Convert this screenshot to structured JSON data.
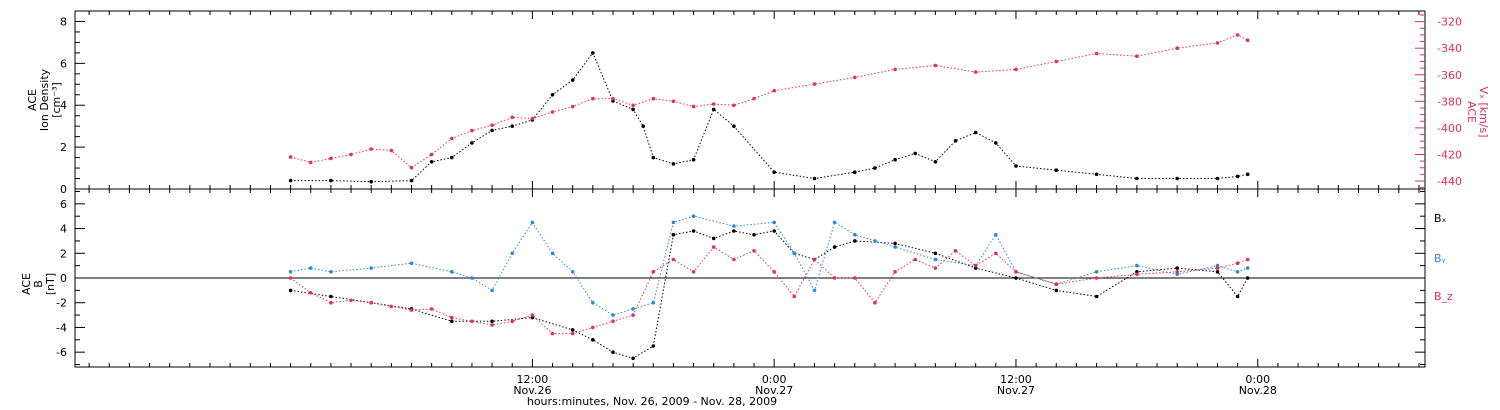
{
  "chart_data": [
    {
      "type": "scatter",
      "panel": "top",
      "left_axis_label": [
        "ACE",
        "Ion Density",
        "[cm⁻³]"
      ],
      "right_axis_label": [
        "ACE",
        "Vₓ [km/s]"
      ],
      "left_ylim": [
        0,
        8.5
      ],
      "left_ticks": [
        "0",
        "2",
        "4",
        "6",
        "8"
      ],
      "left_tick_values": [
        0,
        2,
        4,
        6,
        8
      ],
      "right_ylim": [
        -446,
        -312
      ],
      "right_ticks": [
        "-320",
        "-340",
        "-360",
        "-380",
        "-400",
        "-420",
        "-440"
      ],
      "right_tick_values": [
        -320,
        -340,
        -360,
        -380,
        -400,
        -420,
        -440
      ],
      "colors": {
        "density": "#000000",
        "vx": "#e03060"
      },
      "series": [
        {
          "name": "Ion Density",
          "axis": "left",
          "color": "#000000",
          "x_hours": [
            0,
            2,
            4,
            6,
            7,
            8,
            9,
            10,
            11,
            12,
            13,
            14,
            15,
            16,
            17,
            17.5,
            18,
            19,
            20,
            21,
            22,
            24,
            26,
            28,
            29,
            30,
            31,
            32,
            33,
            34,
            35,
            36,
            38,
            40,
            42,
            44,
            46,
            47,
            47.5
          ],
          "y": [
            0.4,
            0.4,
            0.35,
            0.4,
            1.3,
            1.5,
            2.2,
            2.8,
            3.0,
            3.3,
            4.5,
            5.2,
            6.5,
            4.2,
            3.8,
            3.0,
            1.5,
            1.2,
            1.4,
            3.8,
            3.0,
            0.8,
            0.5,
            0.8,
            1.0,
            1.4,
            1.7,
            1.3,
            2.3,
            2.7,
            2.2,
            1.1,
            0.9,
            0.7,
            0.5,
            0.5,
            0.5,
            0.6,
            0.7
          ]
        },
        {
          "name": "Vx",
          "axis": "right",
          "color": "#e03060",
          "x_hours": [
            0,
            1,
            2,
            3,
            4,
            5,
            6,
            7,
            8,
            9,
            10,
            11,
            12,
            13,
            14,
            15,
            16,
            17,
            18,
            19,
            20,
            21,
            22,
            23,
            24,
            26,
            28,
            30,
            32,
            34,
            36,
            38,
            40,
            42,
            44,
            46,
            47,
            47.5
          ],
          "y": [
            -422,
            -426,
            -423,
            -420,
            -416,
            -417,
            -430,
            -420,
            -408,
            -402,
            -398,
            -392,
            -393,
            -388,
            -384,
            -378,
            -378,
            -383,
            -378,
            -380,
            -384,
            -382,
            -383,
            -378,
            -372,
            -367,
            -362,
            -356,
            -353,
            -358,
            -356,
            -350,
            -344,
            -346,
            -340,
            -336,
            -330,
            -334
          ]
        }
      ]
    },
    {
      "type": "scatter",
      "panel": "bottom",
      "left_axis_label": [
        "ACE",
        "B",
        "[nT]"
      ],
      "ylim": [
        -7.2,
        7.2
      ],
      "left_ticks": [
        "-6",
        "-4",
        "-2",
        "0",
        "2",
        "4",
        "6"
      ],
      "left_tick_values": [
        -6,
        -4,
        -2,
        0,
        2,
        4,
        6
      ],
      "legend": [
        "Bₓ",
        "Bᵧ",
        "B_z"
      ],
      "legend_placement": "right",
      "colors": {
        "bx": "#000000",
        "by": "#2a8ae0",
        "bz": "#e03060"
      },
      "series": [
        {
          "name": "Bx",
          "color": "#000000",
          "x_hours": [
            0,
            2,
            4,
            6,
            8,
            10,
            12,
            14,
            15,
            16,
            17,
            18,
            19,
            20,
            21,
            22,
            23,
            24,
            25,
            26,
            27,
            28,
            30,
            32,
            34,
            36,
            38,
            40,
            42,
            44,
            46,
            47,
            47.5
          ],
          "y": [
            -1.0,
            -1.5,
            -2.0,
            -2.5,
            -3.5,
            -3.5,
            -3.2,
            -4.2,
            -5.0,
            -6.0,
            -6.5,
            -5.5,
            3.5,
            3.8,
            3.2,
            3.8,
            3.5,
            3.8,
            2.0,
            1.5,
            2.5,
            3.0,
            2.8,
            2.0,
            0.8,
            0.0,
            -1.0,
            -1.5,
            0.5,
            0.8,
            0.5,
            -1.5,
            0.0
          ]
        },
        {
          "name": "By",
          "color": "#2a8ae0",
          "x_hours": [
            0,
            1,
            2,
            4,
            6,
            8,
            9,
            10,
            11,
            12,
            13,
            14,
            15,
            16,
            17,
            18,
            19,
            20,
            22,
            24,
            25,
            26,
            27,
            28,
            29,
            30,
            32,
            34,
            35,
            36,
            38,
            40,
            42,
            44,
            46,
            47,
            47.5
          ],
          "y": [
            0.5,
            0.8,
            0.5,
            0.8,
            1.2,
            0.5,
            0.0,
            -1.0,
            2.0,
            4.5,
            2.0,
            0.5,
            -2.0,
            -3.0,
            -2.5,
            -2.0,
            4.5,
            5.0,
            4.2,
            4.5,
            2.0,
            -1.0,
            4.5,
            3.5,
            3.0,
            2.5,
            1.5,
            1.0,
            3.5,
            0.5,
            -0.5,
            0.5,
            1.0,
            0.3,
            1.0,
            0.5,
            0.8
          ]
        },
        {
          "name": "Bz",
          "color": "#e03060",
          "x_hours": [
            0,
            1,
            2,
            3,
            4,
            5,
            6,
            7,
            8,
            9,
            10,
            11,
            12,
            13,
            14,
            15,
            16,
            17,
            18,
            19,
            20,
            21,
            22,
            23,
            24,
            25,
            26,
            27,
            28,
            29,
            30,
            31,
            32,
            33,
            34,
            35,
            36,
            38,
            40,
            42,
            44,
            46,
            47,
            47.5
          ],
          "y": [
            0.0,
            -1.2,
            -2.0,
            -1.8,
            -2.0,
            -2.3,
            -2.6,
            -2.5,
            -3.2,
            -3.5,
            -3.8,
            -3.5,
            -3.0,
            -4.5,
            -4.5,
            -4.0,
            -3.5,
            -3.0,
            0.5,
            1.5,
            0.5,
            2.5,
            1.5,
            2.2,
            0.5,
            -1.5,
            1.5,
            0.0,
            0.0,
            -2.0,
            0.5,
            1.5,
            0.8,
            2.2,
            1.0,
            2.0,
            0.5,
            -0.5,
            0.0,
            0.3,
            0.5,
            0.8,
            1.2,
            1.5
          ]
        }
      ]
    }
  ],
  "x_axis": {
    "range_hours": [
      -10.7,
      56.3
    ],
    "major_ticks": [
      {
        "hours": 12,
        "time": "12:00",
        "date": "Nov.26"
      },
      {
        "hours": 24,
        "time": "0:00",
        "date": "Nov.27"
      },
      {
        "hours": 36,
        "time": "12:00",
        "date": "Nov.27"
      },
      {
        "hours": 48,
        "time": "0:00",
        "date": "Nov.28"
      }
    ],
    "minor_step_hours": 1,
    "title": "hours:minutes, Nov. 26, 2009 - Nov. 28, 2009"
  }
}
